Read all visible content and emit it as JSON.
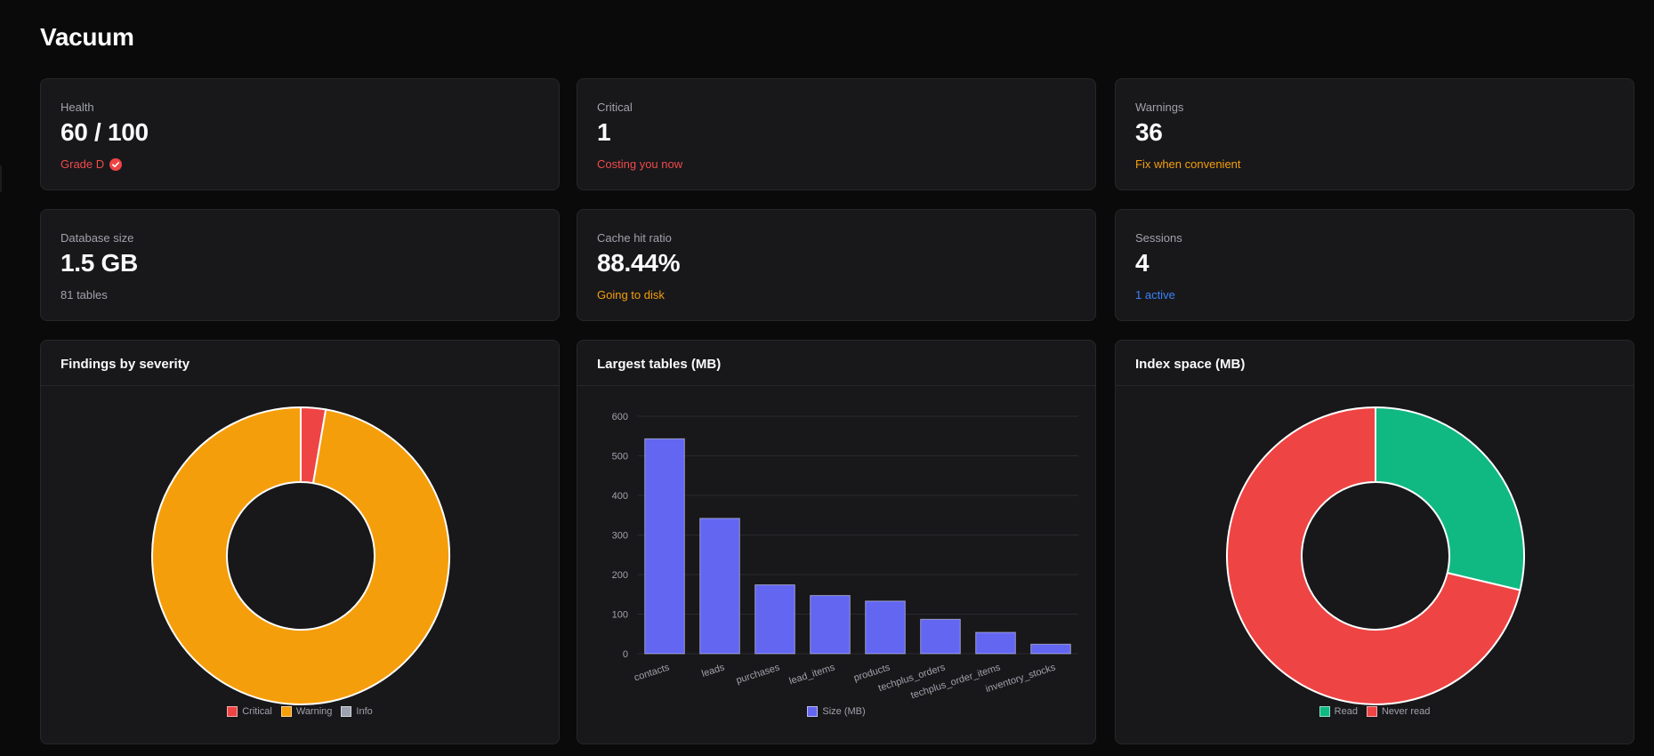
{
  "page": {
    "title": "Vacuum"
  },
  "stats": [
    {
      "label": "Health",
      "value": "60 / 100",
      "sub": "Grade D",
      "sub_color": "#f04a4a",
      "icon": "check-badge-icon"
    },
    {
      "label": "Critical",
      "value": "1",
      "sub": "Costing you now",
      "sub_color": "#f04a4a"
    },
    {
      "label": "Warnings",
      "value": "36",
      "sub": "Fix when convenient",
      "sub_color": "#f59e0b"
    },
    {
      "label": "Database size",
      "value": "1.5 GB",
      "sub": "81 tables",
      "sub_color": "#a1a1aa"
    },
    {
      "label": "Cache hit ratio",
      "value": "88.44%",
      "sub": "Going to disk",
      "sub_color": "#f59e0b"
    },
    {
      "label": "Sessions",
      "value": "4",
      "sub": "1 active",
      "sub_color": "#3b82f6"
    }
  ],
  "charts": {
    "severity": {
      "title": "Findings by severity"
    },
    "tables": {
      "title": "Largest tables (MB)"
    },
    "index": {
      "title": "Index space (MB)"
    }
  },
  "chart_data": [
    {
      "type": "pie",
      "variant": "doughnut",
      "title": "Findings by severity",
      "categories": [
        "Critical",
        "Warning",
        "Info"
      ],
      "values": [
        1,
        36,
        0
      ],
      "colors": [
        "#ef4444",
        "#f59e0b",
        "#9ca3af"
      ],
      "legend": "bottom"
    },
    {
      "type": "bar",
      "title": "Largest tables (MB)",
      "categories": [
        "contacts",
        "leads",
        "purchases",
        "lead_items",
        "products",
        "techplus_orders",
        "techplus_order_items",
        "inventory_stocks"
      ],
      "series": [
        {
          "name": "Size (MB)",
          "values": [
            543,
            342,
            174,
            147,
            133,
            87,
            54,
            24
          ],
          "color": "#6366f1"
        }
      ],
      "ylim": [
        0,
        600
      ],
      "yticks": [
        0,
        100,
        200,
        300,
        400,
        500,
        600
      ],
      "grid": true,
      "legend": "bottom"
    },
    {
      "type": "pie",
      "variant": "doughnut",
      "title": "Index space (MB)",
      "categories": [
        "Read",
        "Never read"
      ],
      "values": [
        28.7,
        71.3
      ],
      "colors": [
        "#10b981",
        "#ef4444"
      ],
      "legend": "bottom"
    }
  ]
}
